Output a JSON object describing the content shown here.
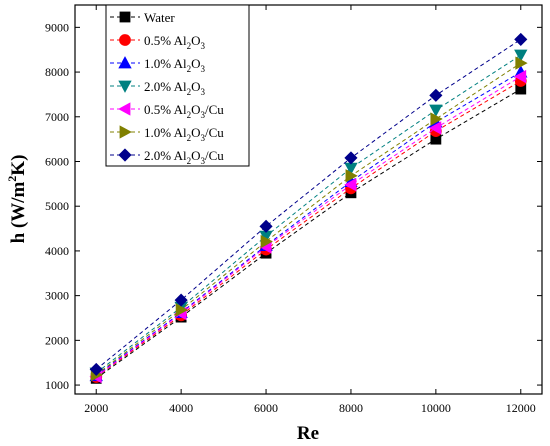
{
  "chart_data": {
    "type": "line",
    "title": "",
    "xlabel": "Re",
    "ylabel": "h (W/m²K)",
    "ylabel_base": "h (W/m",
    "ylabel_sup": "2",
    "ylabel_tail": "K)",
    "xlim": [
      1500,
      12500
    ],
    "ylim": [
      800,
      9500
    ],
    "xticks": [
      2000,
      4000,
      6000,
      8000,
      10000,
      12000
    ],
    "yticks": [
      1000,
      2000,
      3000,
      4000,
      5000,
      6000,
      7000,
      8000,
      9000
    ],
    "grid": false,
    "legend_position": "top-left",
    "line_style": "dashed",
    "x": [
      2000,
      4000,
      6000,
      8000,
      10000,
      12000
    ],
    "series": [
      {
        "name": "Water",
        "legend": {
          "pre": "Water"
        },
        "color": "#000000",
        "marker": "square",
        "values": [
          1150,
          2520,
          3950,
          5300,
          6500,
          7620
        ]
      },
      {
        "name": "0.5% Al2O3",
        "legend": {
          "pre": "0.5% Al",
          "sub1": "2",
          "mid": "O",
          "sub2": "3",
          "post": ""
        },
        "color": "#ff0000",
        "marker": "circle",
        "values": [
          1180,
          2560,
          4030,
          5400,
          6680,
          7800
        ]
      },
      {
        "name": "1.0% Al2O3",
        "legend": {
          "pre": "1.0% Al",
          "sub1": "2",
          "mid": "O",
          "sub2": "3",
          "post": ""
        },
        "color": "#0000ff",
        "marker": "triangle-up",
        "values": [
          1210,
          2620,
          4120,
          5550,
          6880,
          8000
        ]
      },
      {
        "name": "2.0% Al2O3",
        "legend": {
          "pre": "2.0% Al",
          "sub1": "2",
          "mid": "O",
          "sub2": "3",
          "post": ""
        },
        "color": "#008080",
        "marker": "triangle-down",
        "values": [
          1270,
          2740,
          4330,
          5850,
          7150,
          8380
        ]
      },
      {
        "name": "0.5% Al2O3/Cu",
        "legend": {
          "pre": "0.5% Al",
          "sub1": "2",
          "mid": "O",
          "sub2": "3",
          "post": "/Cu"
        },
        "color": "#ff00ff",
        "marker": "triangle-left",
        "values": [
          1190,
          2600,
          4090,
          5480,
          6750,
          7900
        ]
      },
      {
        "name": "1.0% Al2O3/Cu",
        "legend": {
          "pre": "1.0% Al",
          "sub1": "2",
          "mid": "O",
          "sub2": "3",
          "post": "/Cu"
        },
        "color": "#808000",
        "marker": "triangle-right",
        "values": [
          1230,
          2680,
          4210,
          5680,
          6950,
          8200
        ]
      },
      {
        "name": "2.0% Al2O3/Cu",
        "legend": {
          "pre": "2.0% Al",
          "sub1": "2",
          "mid": "O",
          "sub2": "3",
          "post": "/Cu"
        },
        "color": "#00008b",
        "marker": "diamond",
        "values": [
          1350,
          2900,
          4550,
          6080,
          7480,
          8730
        ]
      }
    ]
  }
}
